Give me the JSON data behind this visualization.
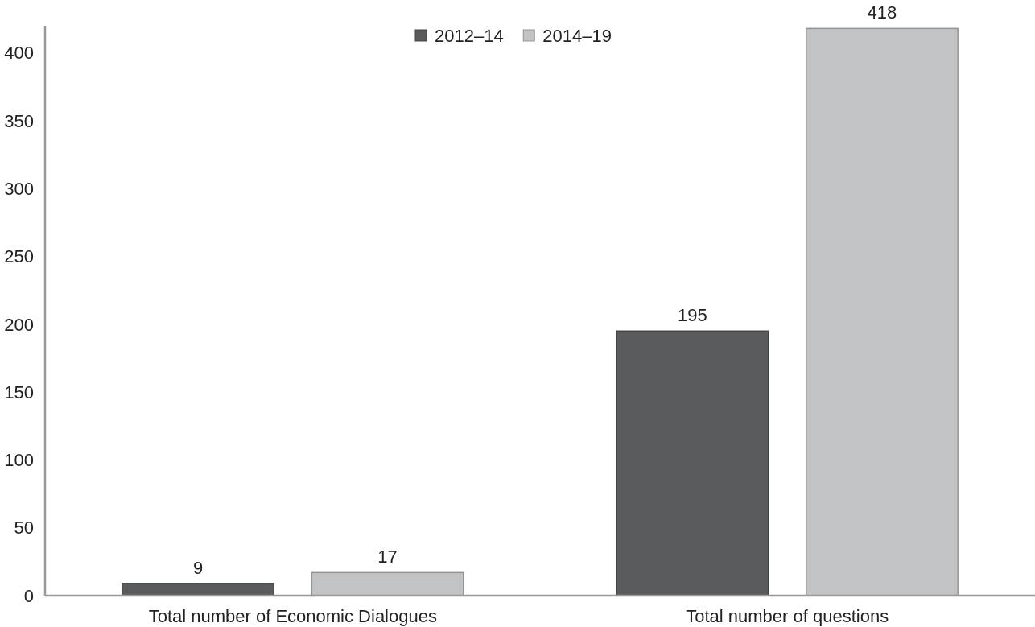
{
  "chart_data": {
    "type": "bar",
    "categories": [
      "Total number of Economic Dialogues",
      "Total number of questions"
    ],
    "series": [
      {
        "name": "2012–14",
        "color": "#5a5b5d",
        "values": [
          9,
          195
        ]
      },
      {
        "name": "2014–19",
        "color": "#c2c3c5",
        "values": [
          17,
          418
        ]
      }
    ],
    "ylim": [
      0,
      420
    ],
    "yticks": [
      0,
      50,
      100,
      150,
      200,
      250,
      300,
      350,
      400
    ],
    "grid": false,
    "legend": "top",
    "data_labels": true
  }
}
